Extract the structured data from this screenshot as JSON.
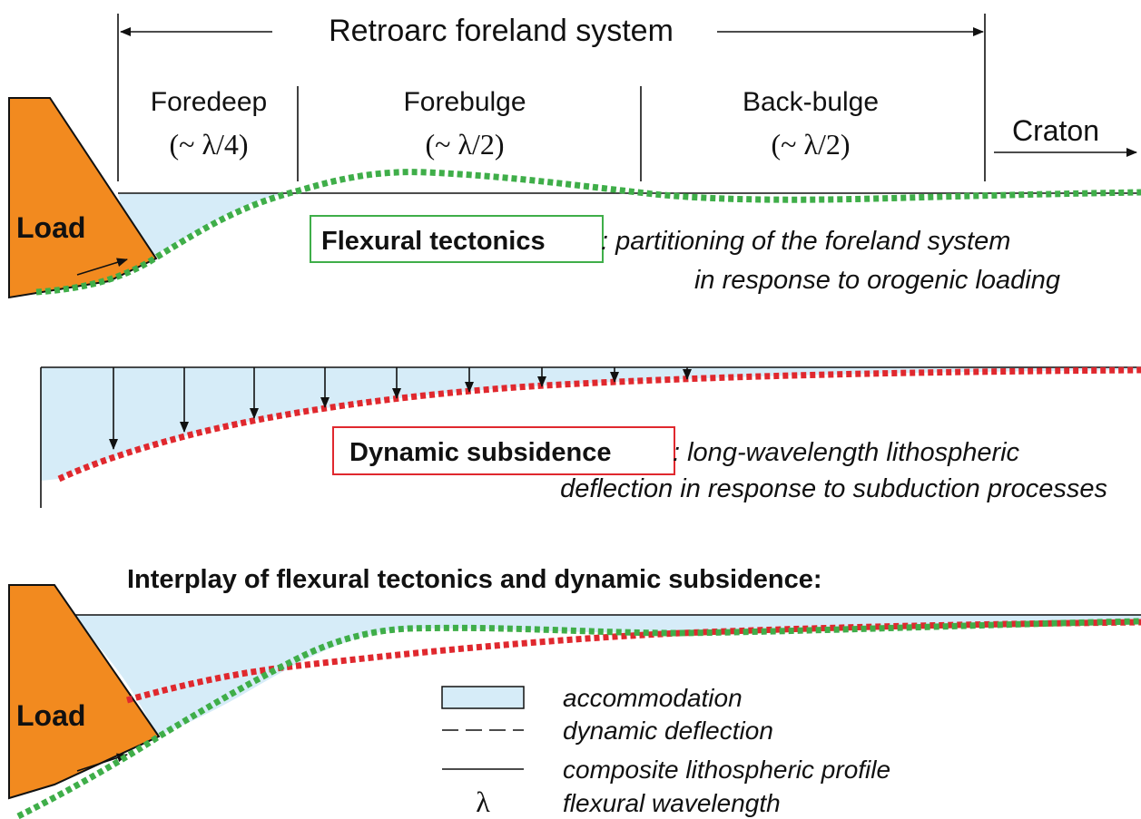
{
  "flexural": {
    "header": "Retroarc foreland system",
    "zones": [
      {
        "name": "Foredeep",
        "fraction": "(~ λ/4)"
      },
      {
        "name": "Forebulge",
        "fraction": "(~ λ/2)"
      },
      {
        "name": "Back-bulge",
        "fraction": "(~ λ/2)"
      }
    ],
    "craton": "Craton",
    "load": "Load",
    "caption": {
      "term": "Flexural tectonics",
      "line1": ": partitioning of the foreland system",
      "line2": "in response to orogenic loading"
    }
  },
  "dynamic": {
    "caption": {
      "term": "Dynamic subsidence",
      "line1": ": long-wavelength lithospheric",
      "line2": "deflection in response to subduction processes"
    }
  },
  "interplay": {
    "title": "Interplay of flexural tectonics and dynamic subsidence:",
    "load": "Load",
    "legend": [
      {
        "label": "accommodation"
      },
      {
        "label": "dynamic deflection"
      },
      {
        "label": "composite lithospheric profile"
      },
      {
        "symbol": "λ",
        "label": "flexural wavelength"
      }
    ]
  }
}
